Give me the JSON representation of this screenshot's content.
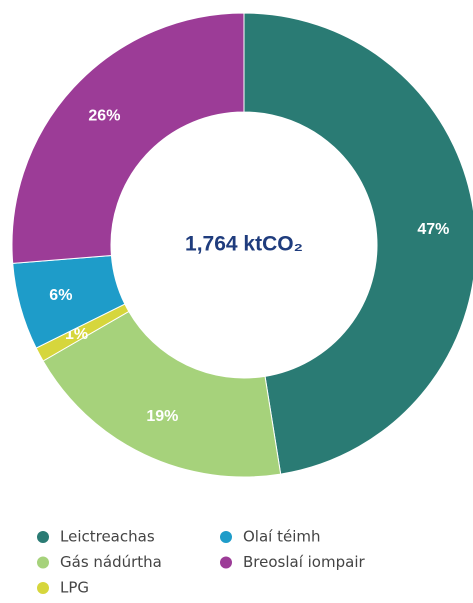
{
  "chart_data": {
    "type": "donut",
    "center_label": "1,764 ktCO₂",
    "categories": [
      "Leictreachas",
      "Gás nádúrtha",
      "LPG",
      "Olaí téimh",
      "Breoslaí iompair"
    ],
    "values": [
      47,
      19,
      1,
      6,
      26
    ],
    "value_labels": [
      "47%",
      "19%",
      "1%",
      "6%",
      "26%"
    ],
    "colors": [
      "#2a7b74",
      "#a6d27b",
      "#d6d63c",
      "#1e9cc9",
      "#9c3c97"
    ],
    "legend": "bottom"
  }
}
